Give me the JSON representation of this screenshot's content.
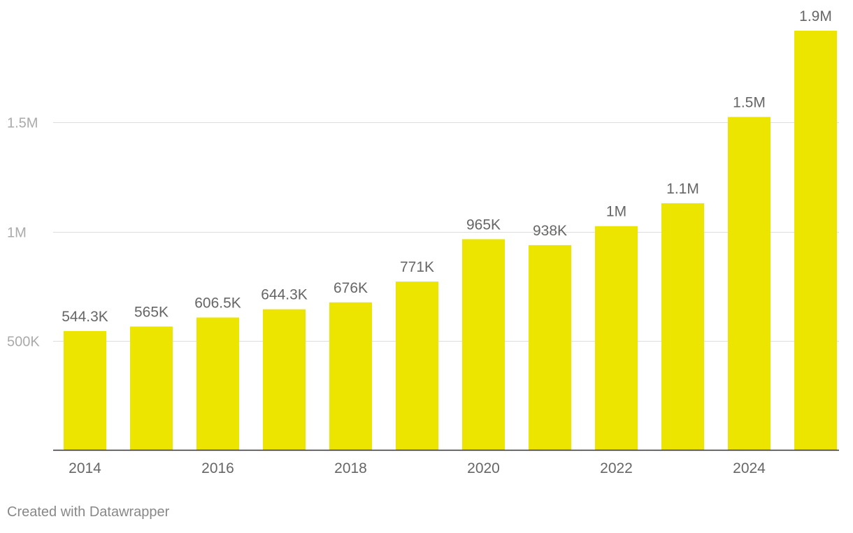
{
  "chart_data": {
    "type": "bar",
    "title": "",
    "xlabel": "",
    "ylabel": "",
    "categories": [
      "2014",
      "2015",
      "2016",
      "2017",
      "2018",
      "2019",
      "2020",
      "2021",
      "2022",
      "2023",
      "2024",
      "2025"
    ],
    "values": [
      544300,
      565000,
      606500,
      644300,
      676000,
      771000,
      965000,
      938000,
      1025000,
      1130000,
      1525000,
      1920000
    ],
    "value_labels": [
      "544.3K",
      "565K",
      "606.5K",
      "644.3K",
      "676K",
      "771K",
      "965K",
      "938K",
      "1M",
      "1.1M",
      "1.5M",
      "1.9M"
    ],
    "x_tick_labels": [
      "2014",
      "2016",
      "2018",
      "2020",
      "2022",
      "2024"
    ],
    "y_ticks": [
      500000,
      1000000,
      1500000
    ],
    "y_tick_labels": [
      "500K",
      "1M",
      "1.5M"
    ],
    "ylim": [
      0,
      1920000
    ],
    "grid": true,
    "legend": "none",
    "colors": {
      "bar": "#ebe500",
      "grid": "#dddddd",
      "axis": "#333333",
      "label": "#666666",
      "tick": "#aaaaaa"
    }
  },
  "footer": {
    "credit": "Created with Datawrapper"
  }
}
